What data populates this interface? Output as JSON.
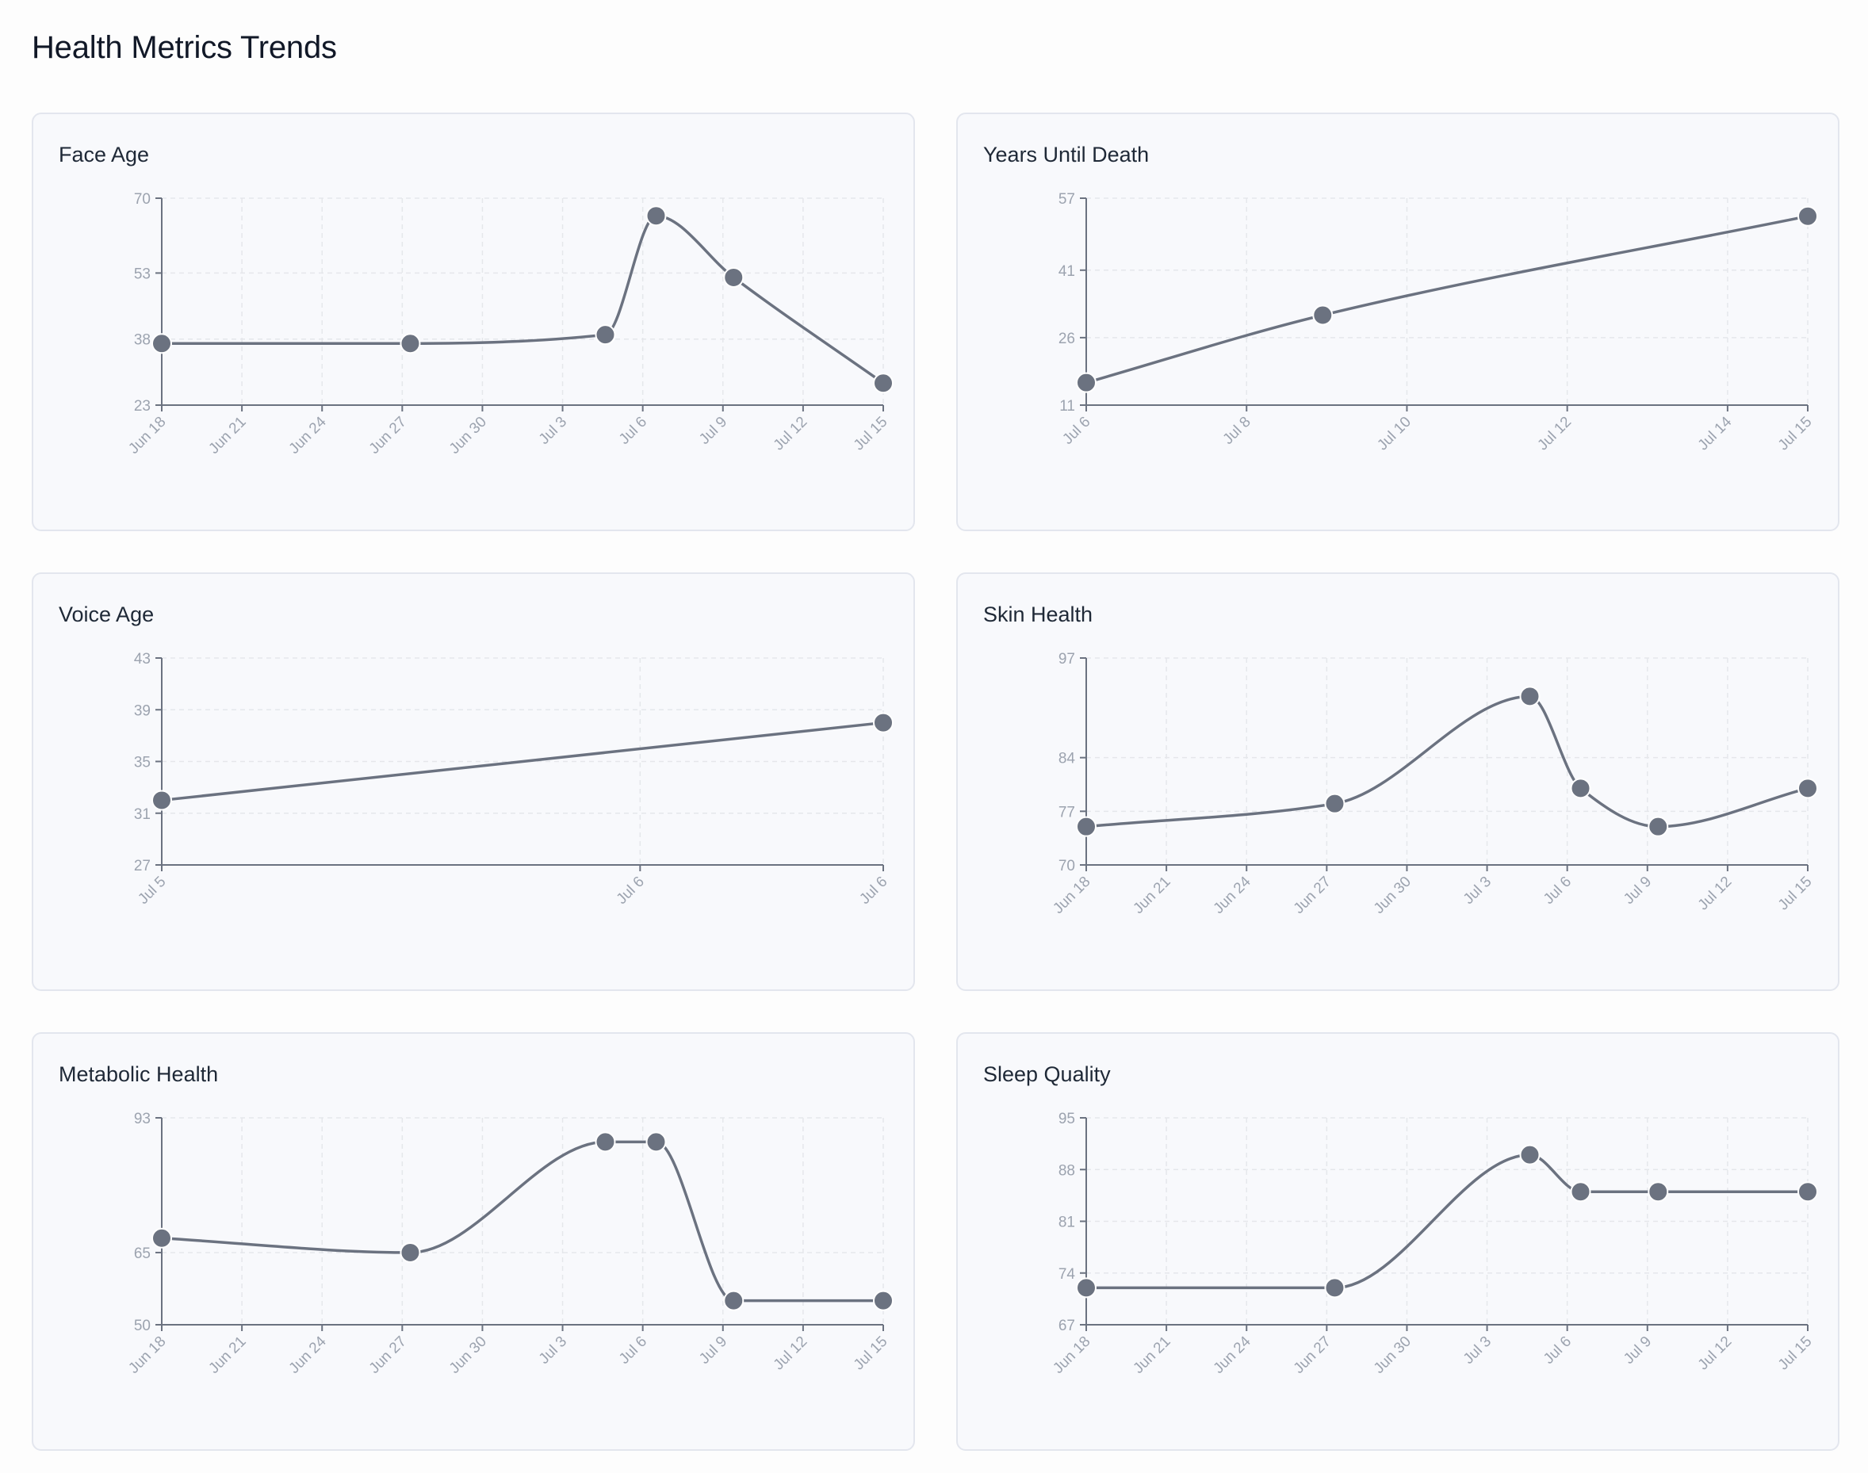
{
  "title": "Health Metrics Trends",
  "colors": {
    "line": "#6b7280",
    "grid": "#e5e7eb",
    "card": "#f8f9fc",
    "tick": "#9ca3af"
  },
  "chart_data": [
    {
      "id": "face-age",
      "type": "line",
      "title": "Face Age",
      "x_ticks": [
        0,
        3,
        6,
        9,
        12,
        15,
        18,
        21,
        24,
        27
      ],
      "x_tick_labels": [
        "Jun 18",
        "Jun 21",
        "Jun 24",
        "Jun 27",
        "Jun 30",
        "Jul 3",
        "Jul 6",
        "Jul 9",
        "Jul 12",
        "Jul 15"
      ],
      "xlim": [
        0,
        27
      ],
      "y_ticks": [
        23,
        38,
        53,
        70
      ],
      "ylim": [
        23,
        70
      ],
      "points": [
        {
          "x": 0,
          "y": 37
        },
        {
          "x": 9.3,
          "y": 37
        },
        {
          "x": 16.6,
          "y": 39
        },
        {
          "x": 18.5,
          "y": 66
        },
        {
          "x": 21.4,
          "y": 52
        },
        {
          "x": 27,
          "y": 28
        }
      ]
    },
    {
      "id": "years-until-death",
      "type": "line",
      "title": "Years Until Death",
      "x_ticks": [
        0,
        2,
        4,
        6,
        8,
        9
      ],
      "x_tick_labels": [
        "Jul 6",
        "Jul 8",
        "Jul 10",
        "Jul 12",
        "Jul 14",
        "Jul 15"
      ],
      "xlim": [
        0,
        9
      ],
      "y_ticks": [
        11,
        26,
        41,
        57
      ],
      "ylim": [
        11,
        57
      ],
      "points": [
        {
          "x": 0,
          "y": 16
        },
        {
          "x": 2.95,
          "y": 31
        },
        {
          "x": 9,
          "y": 53
        }
      ]
    },
    {
      "id": "voice-age",
      "type": "line",
      "title": "Voice Age",
      "x_ticks": [
        0,
        0.663,
        1
      ],
      "x_tick_labels": [
        "Jul 5",
        "Jul 6",
        "Jul 6"
      ],
      "xlim": [
        0,
        1
      ],
      "y_ticks": [
        27,
        31,
        35,
        39,
        43
      ],
      "ylim": [
        27,
        43
      ],
      "points": [
        {
          "x": 0,
          "y": 32
        },
        {
          "x": 1,
          "y": 38
        }
      ]
    },
    {
      "id": "skin-health",
      "type": "line",
      "title": "Skin Health",
      "x_ticks": [
        0,
        3,
        6,
        9,
        12,
        15,
        18,
        21,
        24,
        27
      ],
      "x_tick_labels": [
        "Jun 18",
        "Jun 21",
        "Jun 24",
        "Jun 27",
        "Jun 30",
        "Jul 3",
        "Jul 6",
        "Jul 9",
        "Jul 12",
        "Jul 15"
      ],
      "xlim": [
        0,
        27
      ],
      "y_ticks": [
        70,
        77,
        84,
        97
      ],
      "ylim": [
        70,
        97
      ],
      "points": [
        {
          "x": 0,
          "y": 75
        },
        {
          "x": 9.3,
          "y": 78
        },
        {
          "x": 16.6,
          "y": 92
        },
        {
          "x": 18.5,
          "y": 80
        },
        {
          "x": 21.4,
          "y": 75
        },
        {
          "x": 27,
          "y": 80
        }
      ]
    },
    {
      "id": "metabolic-health",
      "type": "line",
      "title": "Metabolic Health",
      "x_ticks": [
        0,
        3,
        6,
        9,
        12,
        15,
        18,
        21,
        24,
        27
      ],
      "x_tick_labels": [
        "Jun 18",
        "Jun 21",
        "Jun 24",
        "Jun 27",
        "Jun 30",
        "Jul 3",
        "Jul 6",
        "Jul 9",
        "Jul 12",
        "Jul 15"
      ],
      "xlim": [
        0,
        27
      ],
      "y_ticks": [
        50,
        65,
        93
      ],
      "ylim": [
        50,
        93
      ],
      "points": [
        {
          "x": 0,
          "y": 68
        },
        {
          "x": 9.3,
          "y": 65
        },
        {
          "x": 16.6,
          "y": 88
        },
        {
          "x": 18.5,
          "y": 88
        },
        {
          "x": 21.4,
          "y": 55
        },
        {
          "x": 27,
          "y": 55
        }
      ]
    },
    {
      "id": "sleep-quality",
      "type": "line",
      "title": "Sleep Quality",
      "x_ticks": [
        0,
        3,
        6,
        9,
        12,
        15,
        18,
        21,
        24,
        27
      ],
      "x_tick_labels": [
        "Jun 18",
        "Jun 21",
        "Jun 24",
        "Jun 27",
        "Jun 30",
        "Jul 3",
        "Jul 6",
        "Jul 9",
        "Jul 12",
        "Jul 15"
      ],
      "xlim": [
        0,
        27
      ],
      "y_ticks": [
        67,
        74,
        81,
        88,
        95
      ],
      "ylim": [
        67,
        95
      ],
      "points": [
        {
          "x": 0,
          "y": 72
        },
        {
          "x": 9.3,
          "y": 72
        },
        {
          "x": 16.6,
          "y": 90
        },
        {
          "x": 18.5,
          "y": 85
        },
        {
          "x": 21.4,
          "y": 85
        },
        {
          "x": 27,
          "y": 85
        }
      ]
    }
  ]
}
